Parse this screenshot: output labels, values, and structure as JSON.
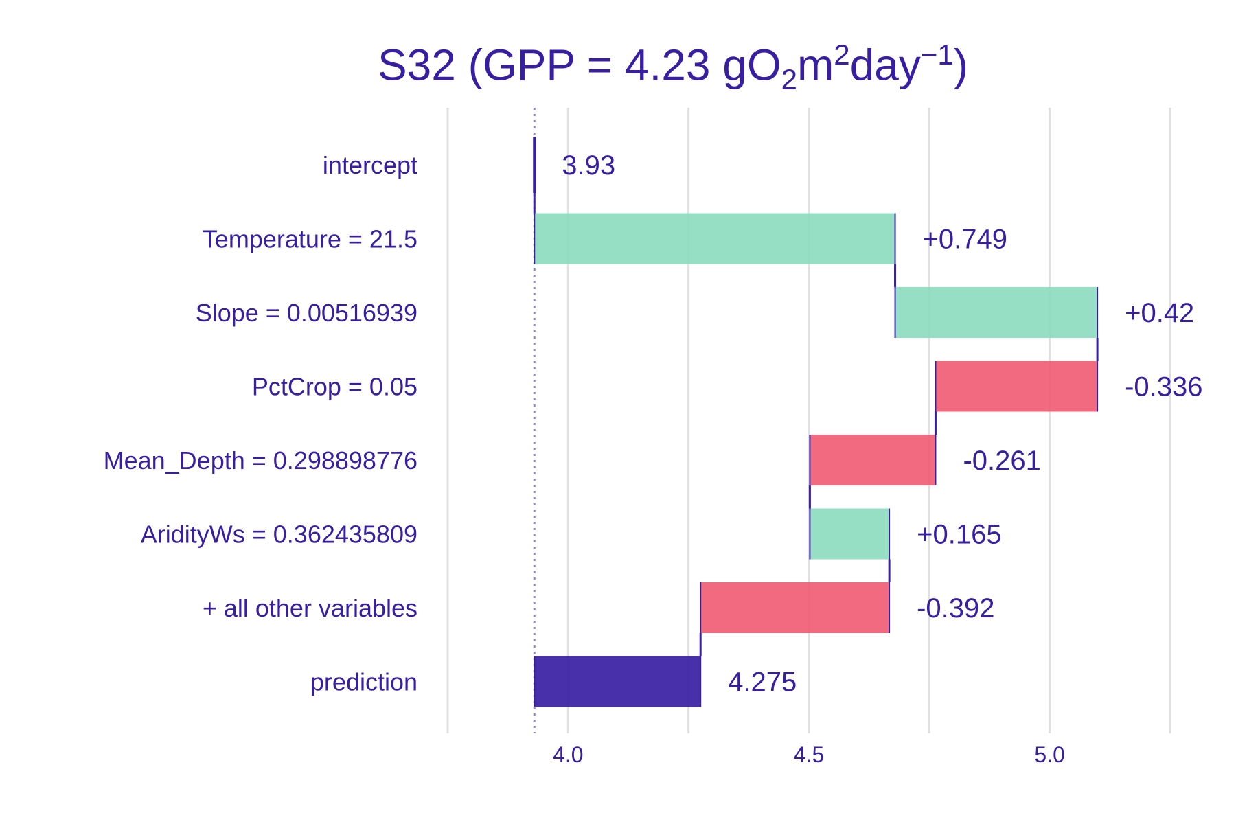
{
  "title": {
    "prefix": "S32 (GPP = 4.23 gO",
    "sub": "2",
    "mid": "m",
    "sup1": "2",
    "mid2": "day",
    "sup2": "−1",
    "suffix": ")"
  },
  "colors": {
    "text": "#371ea3",
    "positive": "#8bdcbe",
    "negative": "#f05a71",
    "prediction": "#371ea3",
    "grid": "#e0e0e0",
    "baseline": "#8e86d0"
  },
  "chart_data": {
    "type": "bar",
    "subtype": "waterfall (break-down)",
    "title": "S32 (GPP = 4.23 gO2m2day−1)",
    "categories": [
      "intercept",
      "Temperature = 21.5",
      "Slope = 0.00516939",
      "PctCrop = 0.05",
      "Mean_Depth = 0.298898776",
      "AridityWs = 0.362435809",
      "+ all other variables",
      "prediction"
    ],
    "contributions": [
      3.93,
      0.749,
      0.42,
      -0.336,
      -0.261,
      0.165,
      -0.392,
      4.275
    ],
    "labels": [
      "3.93",
      "+0.749",
      "+0.42",
      "-0.336",
      "-0.261",
      "+0.165",
      "-0.392",
      "4.275"
    ],
    "kinds": [
      "intercept",
      "positive",
      "positive",
      "negative",
      "negative",
      "positive",
      "negative",
      "prediction"
    ],
    "baseline": 3.93,
    "xlim": [
      3.75,
      5.25
    ],
    "xticks": [
      "4.0",
      "4.5",
      "5.0"
    ],
    "xtick_values": [
      4.0,
      4.5,
      5.0
    ],
    "gridlines": [
      3.75,
      4.0,
      4.25,
      4.5,
      4.75,
      5.0,
      5.25
    ],
    "grid": true,
    "xlabel": "",
    "ylabel": ""
  }
}
